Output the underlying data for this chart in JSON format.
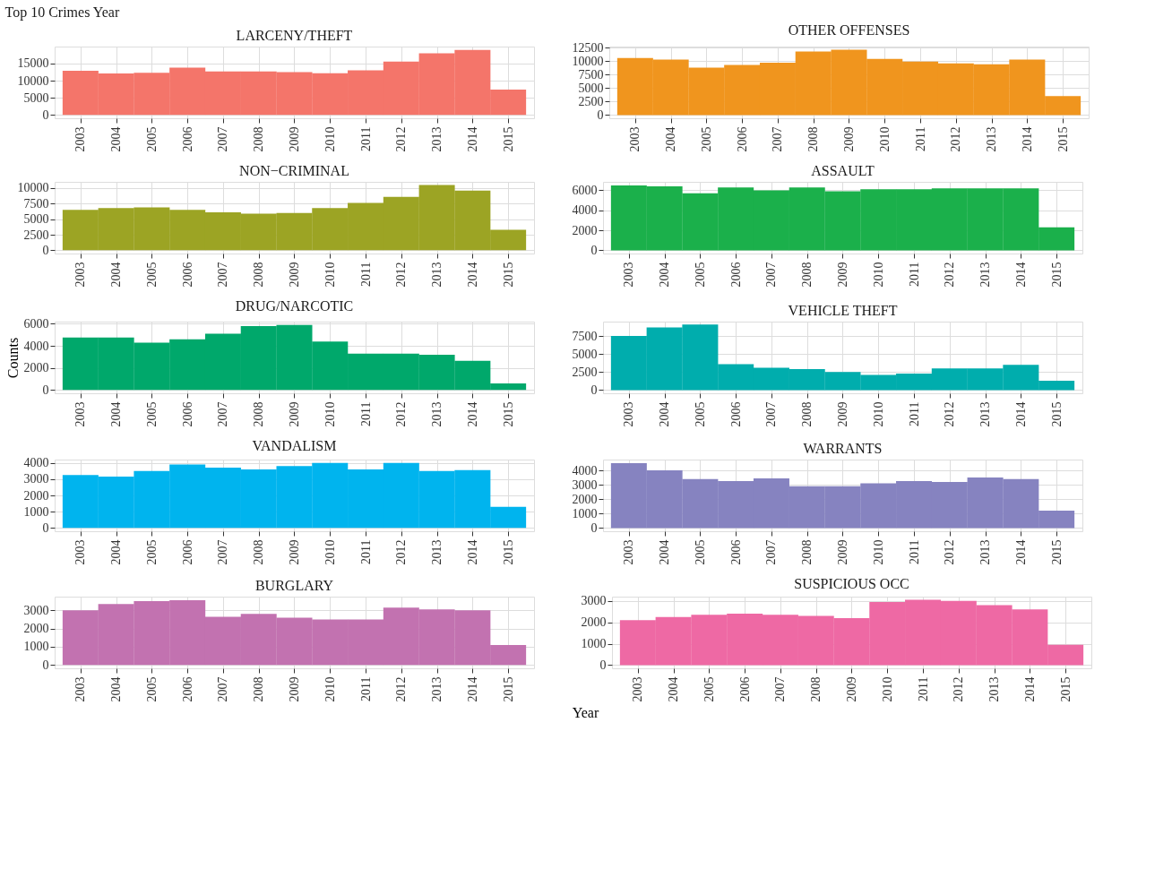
{
  "chart_data": [
    {
      "type": "bar",
      "title": "LARCENY/THEFT",
      "annotations": [
        "Top 10 Crimes Year"
      ],
      "categories": [
        "2003",
        "2004",
        "2005",
        "2006",
        "2007",
        "2008",
        "2009",
        "2010",
        "2011",
        "2012",
        "2013",
        "2014",
        "2015"
      ],
      "values": [
        12900,
        12100,
        12300,
        13800,
        12700,
        12700,
        12500,
        12200,
        13000,
        15600,
        18000,
        19000,
        7400
      ],
      "color": "#f4756a",
      "ylim": [
        -950,
        19950
      ],
      "yticks": [
        0,
        5000,
        10000,
        15000
      ],
      "grid": true
    },
    {
      "type": "bar",
      "title": "OTHER OFFENSES",
      "categories": [
        "2003",
        "2004",
        "2005",
        "2006",
        "2007",
        "2008",
        "2009",
        "2010",
        "2011",
        "2012",
        "2013",
        "2014",
        "2015"
      ],
      "values": [
        10600,
        10300,
        8800,
        9300,
        9700,
        11800,
        12100,
        10400,
        9900,
        9600,
        9400,
        10300,
        3500
      ],
      "color": "#f0951e",
      "ylim": [
        -600,
        12700
      ],
      "yticks": [
        0,
        2500,
        5000,
        7500,
        10000,
        12500
      ],
      "grid": true
    },
    {
      "type": "bar",
      "title": "NON−CRIMINAL",
      "categories": [
        "2003",
        "2004",
        "2005",
        "2006",
        "2007",
        "2008",
        "2009",
        "2010",
        "2011",
        "2012",
        "2013",
        "2014",
        "2015"
      ],
      "values": [
        6500,
        6800,
        6900,
        6500,
        6100,
        5900,
        6000,
        6800,
        7600,
        8600,
        10500,
        9600,
        3300
      ],
      "color": "#9ca424",
      "ylim": [
        -525,
        11000
      ],
      "yticks": [
        0,
        2500,
        5000,
        7500,
        10000
      ],
      "grid": true
    },
    {
      "type": "bar",
      "title": "ASSAULT",
      "categories": [
        "2003",
        "2004",
        "2005",
        "2006",
        "2007",
        "2008",
        "2009",
        "2010",
        "2011",
        "2012",
        "2013",
        "2014",
        "2015"
      ],
      "values": [
        6500,
        6400,
        5700,
        6300,
        6000,
        6300,
        5900,
        6100,
        6100,
        6200,
        6200,
        6200,
        2300
      ],
      "color": "#1bb04b",
      "ylim": [
        -325,
        6850
      ],
      "yticks": [
        0,
        2000,
        4000,
        6000
      ],
      "grid": true
    },
    {
      "type": "bar",
      "title": "DRUG/NARCOTIC",
      "ylabel": "Counts",
      "categories": [
        "2003",
        "2004",
        "2005",
        "2006",
        "2007",
        "2008",
        "2009",
        "2010",
        "2011",
        "2012",
        "2013",
        "2014",
        "2015"
      ],
      "values": [
        4750,
        4750,
        4300,
        4600,
        5100,
        5800,
        5900,
        4400,
        3300,
        3300,
        3200,
        2650,
        600
      ],
      "color": "#00a86b",
      "ylim": [
        -300,
        6200
      ],
      "yticks": [
        0,
        2000,
        4000,
        6000
      ],
      "grid": true
    },
    {
      "type": "bar",
      "title": "VEHICLE THEFT",
      "categories": [
        "2003",
        "2004",
        "2005",
        "2006",
        "2007",
        "2008",
        "2009",
        "2010",
        "2011",
        "2012",
        "2013",
        "2014",
        "2015"
      ],
      "values": [
        7500,
        8700,
        9100,
        3600,
        3100,
        2900,
        2500,
        2100,
        2300,
        3000,
        3000,
        3500,
        1300
      ],
      "color": "#00adad",
      "ylim": [
        -450,
        9500
      ],
      "yticks": [
        0,
        2500,
        5000,
        7500
      ],
      "grid": true
    },
    {
      "type": "bar",
      "title": "VANDALISM",
      "categories": [
        "2003",
        "2004",
        "2005",
        "2006",
        "2007",
        "2008",
        "2009",
        "2010",
        "2011",
        "2012",
        "2013",
        "2014",
        "2015"
      ],
      "values": [
        3250,
        3150,
        3500,
        3900,
        3700,
        3600,
        3800,
        4000,
        3600,
        4000,
        3500,
        3550,
        1300
      ],
      "color": "#00b4ee",
      "ylim": [
        -200,
        4200
      ],
      "yticks": [
        0,
        1000,
        2000,
        3000,
        4000
      ],
      "grid": true
    },
    {
      "type": "bar",
      "title": "WARRANTS",
      "categories": [
        "2003",
        "2004",
        "2005",
        "2006",
        "2007",
        "2008",
        "2009",
        "2010",
        "2011",
        "2012",
        "2013",
        "2014",
        "2015"
      ],
      "values": [
        4500,
        4000,
        3400,
        3250,
        3450,
        2900,
        2900,
        3100,
        3250,
        3200,
        3500,
        3400,
        1200
      ],
      "color": "#8683c0",
      "ylim": [
        -225,
        4750
      ],
      "yticks": [
        0,
        1000,
        2000,
        3000,
        4000
      ],
      "grid": true
    },
    {
      "type": "bar",
      "title": "BURGLARY",
      "categories": [
        "2003",
        "2004",
        "2005",
        "2006",
        "2007",
        "2008",
        "2009",
        "2010",
        "2011",
        "2012",
        "2013",
        "2014",
        "2015"
      ],
      "values": [
        3000,
        3350,
        3500,
        3550,
        2650,
        2800,
        2600,
        2500,
        2500,
        3150,
        3050,
        3000,
        1100
      ],
      "color": "#c272b0",
      "ylim": [
        -180,
        3750
      ],
      "yticks": [
        0,
        1000,
        2000,
        3000
      ],
      "grid": true
    },
    {
      "type": "bar",
      "title": "SUSPICIOUS OCC",
      "xlabel": "Year",
      "categories": [
        "2003",
        "2004",
        "2005",
        "2006",
        "2007",
        "2008",
        "2009",
        "2010",
        "2011",
        "2012",
        "2013",
        "2014",
        "2015"
      ],
      "values": [
        2100,
        2250,
        2350,
        2400,
        2350,
        2300,
        2200,
        2950,
        3050,
        3000,
        2800,
        2600,
        950
      ],
      "color": "#ee69a4",
      "ylim": [
        -150,
        3200
      ],
      "yticks": [
        0,
        1000,
        2000,
        3000
      ],
      "grid": true
    }
  ]
}
